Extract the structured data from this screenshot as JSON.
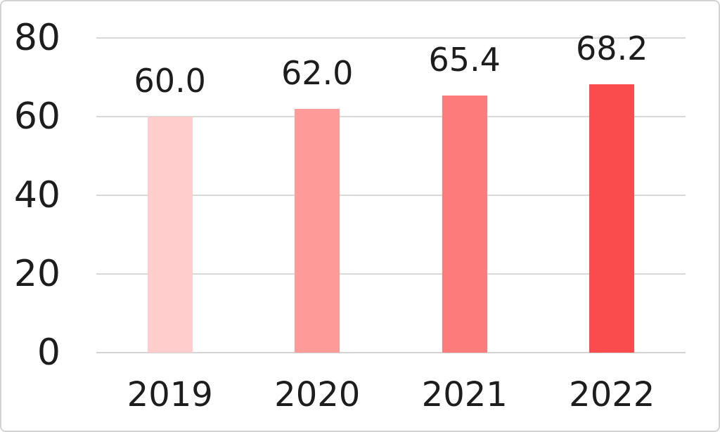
{
  "chart_data": {
    "type": "bar",
    "categories": [
      "2019",
      "2020",
      "2021",
      "2022"
    ],
    "values": [
      60.0,
      62.0,
      65.4,
      68.2
    ],
    "data_labels": [
      "60.0",
      "62.0",
      "65.4",
      "68.2"
    ],
    "bar_colors": [
      "#ffcdcb",
      "#fc9b98",
      "#fd7c7b",
      "#fa4c4c"
    ],
    "title": "",
    "xlabel": "",
    "ylabel": "",
    "y_ticks": [
      0,
      20,
      40,
      60,
      80
    ],
    "y_tick_labels": [
      "0",
      "20",
      "40",
      "60",
      "80"
    ],
    "ylim": [
      0,
      80
    ],
    "grid": true,
    "legend_position": "none"
  },
  "style": {
    "background": "#ffffff",
    "border_color": "#d3d3d3",
    "gridline_color": "#d9d9d9",
    "axis_line_color": "#d3d3d3",
    "text_color": "#1d1d1d"
  }
}
